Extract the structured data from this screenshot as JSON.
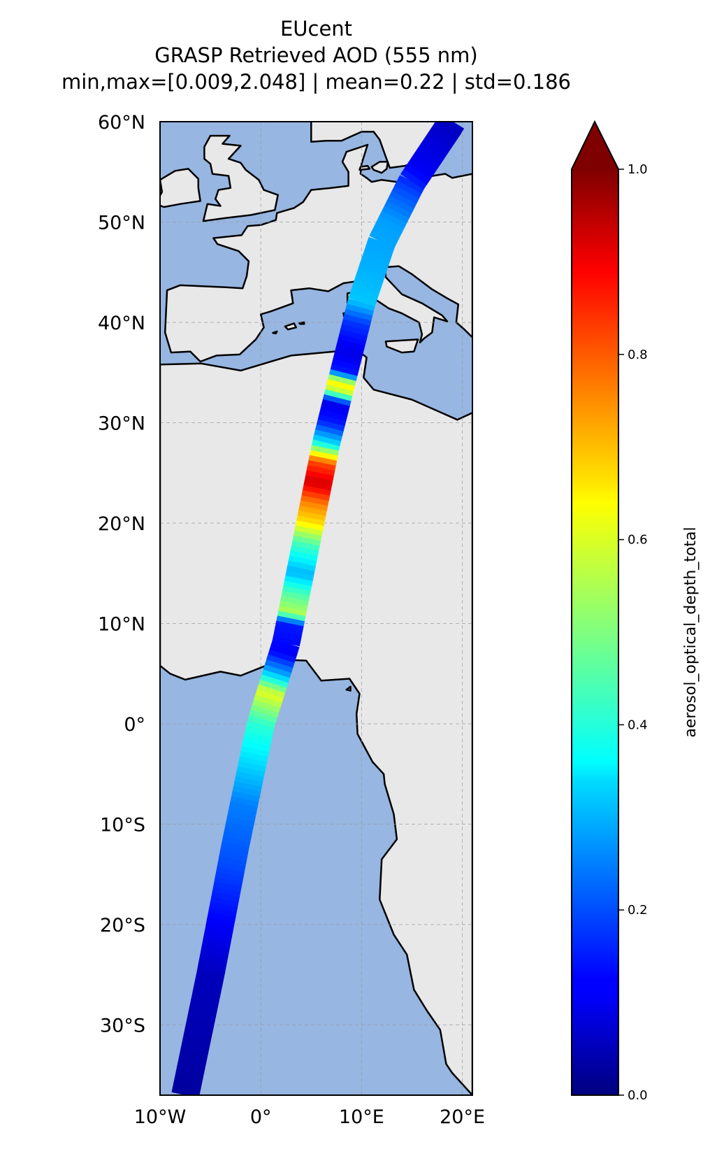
{
  "figure": {
    "title": "EUcent",
    "subtitle": "GRASP Retrieved AOD (555 nm)",
    "stats_line": "min,max=[0.009,2.048] | mean=0.22 | std=0.186"
  },
  "map": {
    "projection": "PlateCarree",
    "lon_range": [
      -10,
      21
    ],
    "lat_range": [
      -37,
      60
    ],
    "ocean_color": "#97b6e1",
    "land_color": "#e8e8e8",
    "coastline_color": "#000000",
    "gridlines": "dashed",
    "x_ticks": [
      {
        "value": -10,
        "label": "10°W"
      },
      {
        "value": 0,
        "label": "0°"
      },
      {
        "value": 10,
        "label": "10°E"
      },
      {
        "value": 20,
        "label": "20°E"
      }
    ],
    "y_ticks": [
      {
        "value": 60,
        "label": "60°N"
      },
      {
        "value": 50,
        "label": "50°N"
      },
      {
        "value": 40,
        "label": "40°N"
      },
      {
        "value": 30,
        "label": "30°N"
      },
      {
        "value": 20,
        "label": "20°N"
      },
      {
        "value": 10,
        "label": "10°N"
      },
      {
        "value": 0,
        "label": "0°"
      },
      {
        "value": -10,
        "label": "10°S"
      },
      {
        "value": -20,
        "label": "20°S"
      },
      {
        "value": -30,
        "label": "30°S"
      }
    ]
  },
  "swath": {
    "centerline": [
      [
        -7.5,
        -37
      ],
      [
        -5,
        -25
      ],
      [
        -2.5,
        -12
      ],
      [
        0,
        0
      ],
      [
        2.5,
        8
      ],
      [
        4.5,
        18
      ],
      [
        6.5,
        28
      ],
      [
        8.5,
        36
      ],
      [
        10,
        42
      ],
      [
        12,
        48
      ],
      [
        15,
        54
      ],
      [
        19,
        60
      ]
    ],
    "aod_profile": [
      {
        "lat": -37,
        "aod": 0.03
      },
      {
        "lat": -30,
        "aod": 0.05
      },
      {
        "lat": -25,
        "aod": 0.06
      },
      {
        "lat": -20,
        "aod": 0.12
      },
      {
        "lat": -14,
        "aod": 0.2
      },
      {
        "lat": -8,
        "aod": 0.25
      },
      {
        "lat": -3,
        "aod": 0.36
      },
      {
        "lat": 0,
        "aod": 0.42
      },
      {
        "lat": 3,
        "aod": 0.6
      },
      {
        "lat": 5,
        "aod": 0.3
      },
      {
        "lat": 7,
        "aod": 0.12
      },
      {
        "lat": 10,
        "aod": 0.15
      },
      {
        "lat": 11,
        "aod": 0.55
      },
      {
        "lat": 13,
        "aod": 0.45
      },
      {
        "lat": 15,
        "aod": 0.3
      },
      {
        "lat": 18,
        "aod": 0.45
      },
      {
        "lat": 20,
        "aod": 0.65
      },
      {
        "lat": 22,
        "aod": 0.75
      },
      {
        "lat": 24,
        "aod": 0.92
      },
      {
        "lat": 26,
        "aod": 0.8
      },
      {
        "lat": 28,
        "aod": 0.35
      },
      {
        "lat": 30,
        "aod": 0.15
      },
      {
        "lat": 32,
        "aod": 0.1
      },
      {
        "lat": 33,
        "aod": 0.55
      },
      {
        "lat": 34,
        "aod": 0.65
      },
      {
        "lat": 35,
        "aod": 0.15
      },
      {
        "lat": 37,
        "aod": 0.1
      },
      {
        "lat": 40,
        "aod": 0.18
      },
      {
        "lat": 42,
        "aod": 0.32
      },
      {
        "lat": 45,
        "aod": 0.3
      },
      {
        "lat": 50,
        "aod": 0.28
      },
      {
        "lat": 53,
        "aod": 0.2
      },
      {
        "lat": 55,
        "aod": 0.12
      },
      {
        "lat": 60,
        "aod": 0.06
      }
    ]
  },
  "colorbar": {
    "label": "aerosol_optical_depth_total",
    "colormap": "jet",
    "range": [
      0.0,
      1.0
    ],
    "extend": "max",
    "ticks": [
      {
        "value": 0.0,
        "label": "0.0"
      },
      {
        "value": 0.2,
        "label": "0.2"
      },
      {
        "value": 0.4,
        "label": "0.4"
      },
      {
        "value": 0.6,
        "label": "0.6"
      },
      {
        "value": 0.8,
        "label": "0.8"
      },
      {
        "value": 1.0,
        "label": "1.0"
      }
    ]
  }
}
